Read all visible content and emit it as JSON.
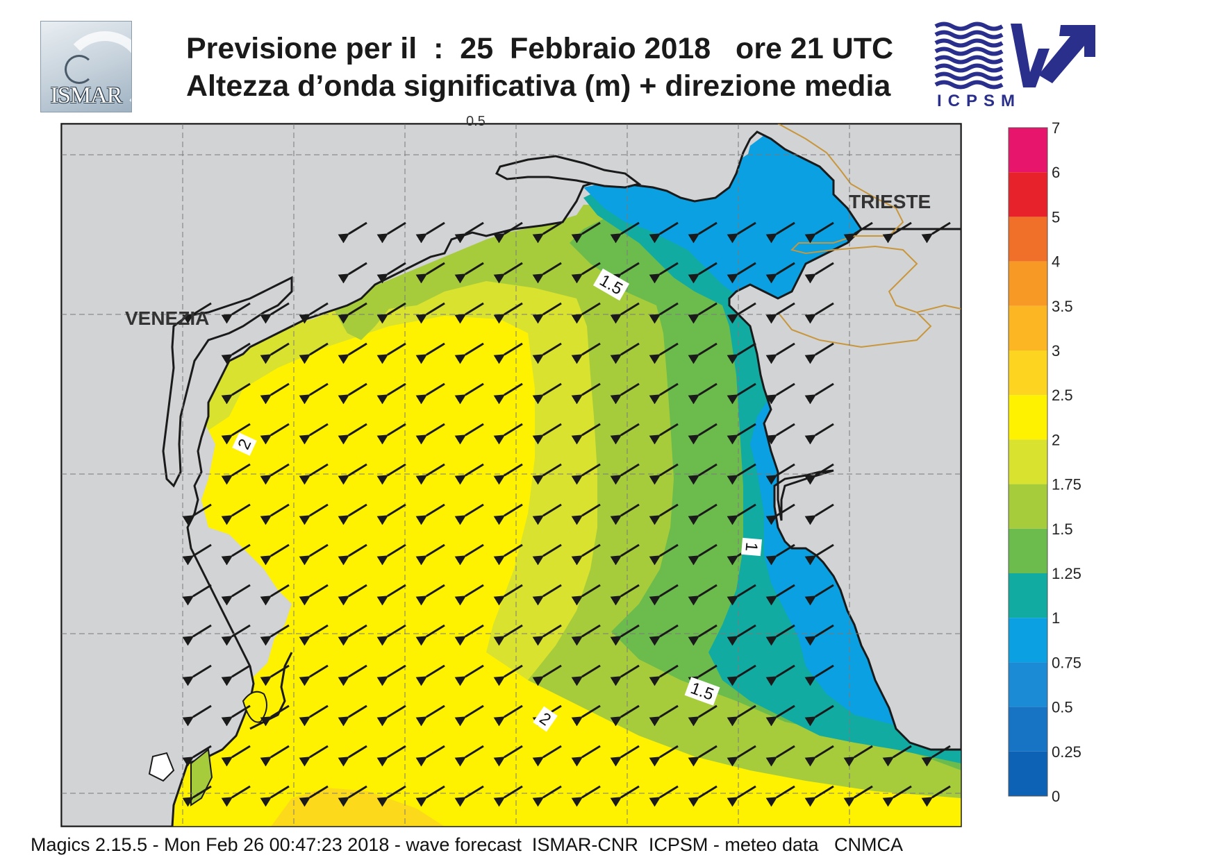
{
  "header": {
    "title_line1": "Previsione per il  :  25  Febbraio 2018   ore 21 UTC",
    "title_line2": "Altezza d’onda significativa (m) + direzione media"
  },
  "logos": {
    "left": {
      "name": "ISMAR logo",
      "text": "ISMAR"
    },
    "right": {
      "name": "ICPSM logo",
      "text": "ICPSM",
      "color": "#2a2f8c"
    }
  },
  "map": {
    "place_labels": [
      "VENEZIA",
      "TRIESTE"
    ],
    "contour_labels": [
      "1.5",
      "2",
      "1",
      "1.5",
      "2"
    ],
    "truncated_top_label": "0.5",
    "mean_wave_direction": "towards south-west",
    "land_color": "#d2d3d5",
    "coast_color": "#1a1a1a",
    "border_color": "#c8963c",
    "grid": true
  },
  "legend": {
    "levels": [
      "7",
      "6",
      "5",
      "4",
      "3.5",
      "3",
      "2.5",
      "2",
      "1.75",
      "1.5",
      "1.25",
      "1",
      "0.75",
      "0.5",
      "0.25",
      "0"
    ],
    "colors": [
      "#e8156c",
      "#e8222a",
      "#f0702a",
      "#f79a25",
      "#fcb523",
      "#fdd520",
      "#fff200",
      "#d9e22e",
      "#a6cc3c",
      "#6cbc4d",
      "#11aba1",
      "#0aa0e2",
      "#1c8bd6",
      "#1774c5",
      "#0d62b5"
    ],
    "unit": "m"
  },
  "footer": {
    "text": "Magics 2.15.5 - Mon Feb 26 00:47:23 2018 - wave forecast  ISMAR-CNR  ICPSM - meteo data   CNMCA"
  }
}
